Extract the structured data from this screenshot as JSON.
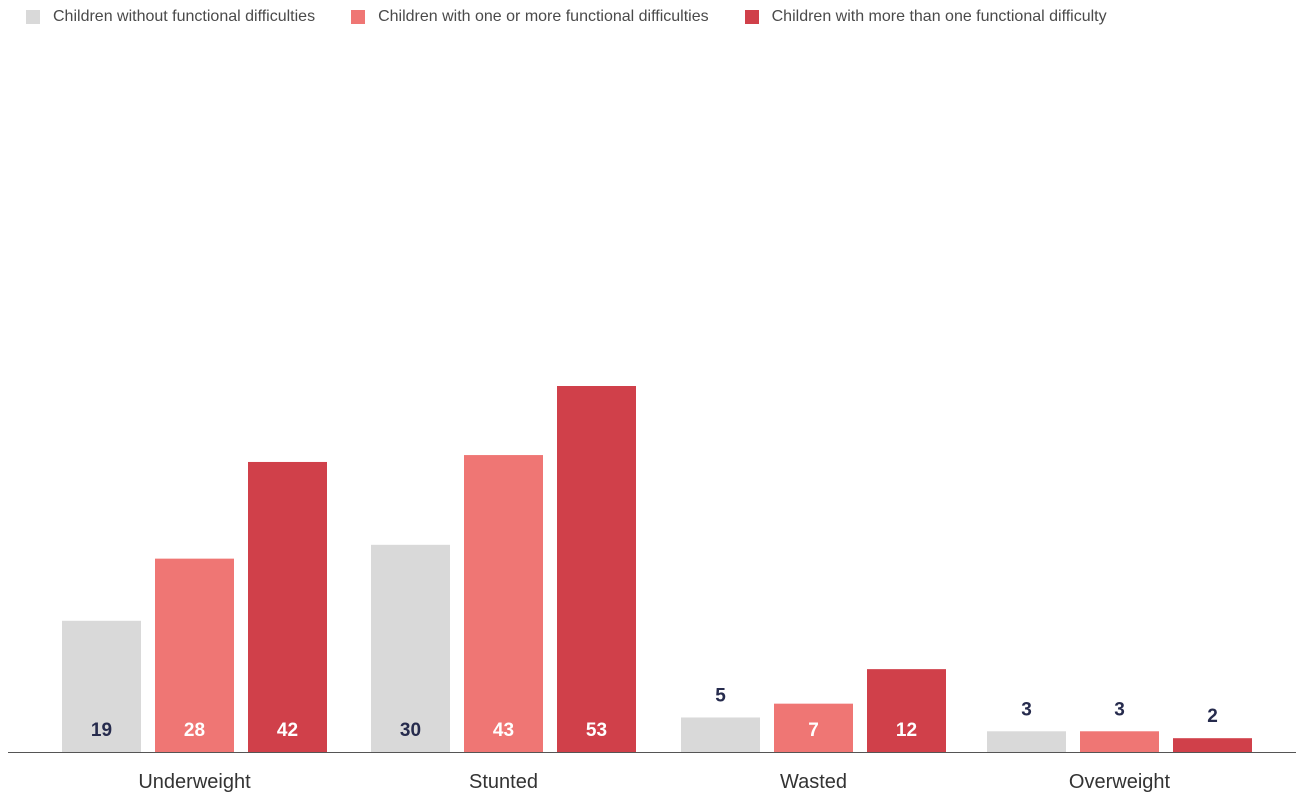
{
  "chart_data": {
    "type": "bar",
    "title": "",
    "xlabel": "",
    "ylabel": "",
    "categories": [
      "Underweight",
      "Stunted",
      "Wasted",
      "Overweight"
    ],
    "series": [
      {
        "name": "Children without functional difficulties",
        "color": "#d9d9d9",
        "label_color": "#262b4d",
        "values": [
          19,
          30,
          5,
          3
        ]
      },
      {
        "name": "Children with one or more functional difficulties",
        "color": "#ef7674",
        "label_color": "#ffffff",
        "values": [
          28,
          43,
          7,
          3
        ]
      },
      {
        "name": "Children with more than one functional difficulty",
        "color": "#d0404a",
        "label_color": "#ffffff",
        "values": [
          42,
          53,
          12,
          2
        ]
      }
    ],
    "ylim": [
      0,
      53
    ],
    "grid": false,
    "legend_position": "top-left",
    "value_labels": [
      "19",
      "28",
      "42",
      "30",
      "43",
      "53",
      "5",
      "7",
      "12",
      "3",
      "3",
      "2"
    ],
    "small_bar_label_color": "#262b4d"
  }
}
